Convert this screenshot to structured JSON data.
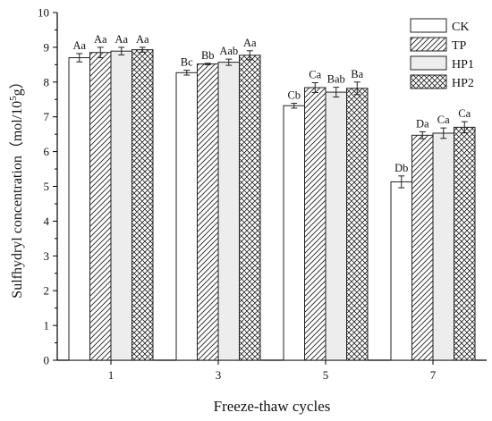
{
  "chart_data": {
    "type": "bar",
    "xlabel": "Freeze-thaw cycles",
    "ylabel": {
      "main": "Sulfhydryl concentration（mol/10",
      "sup": "5",
      "tail": "g）"
    },
    "ylim": [
      0,
      10
    ],
    "yticks": [
      "0",
      "1",
      "2",
      "3",
      "4",
      "5",
      "6",
      "7",
      "8",
      "9",
      "10"
    ],
    "categories": [
      "1",
      "3",
      "5",
      "7"
    ],
    "legend_position": "top-right",
    "grid": false,
    "series": [
      {
        "name": "CK",
        "pattern": "white",
        "values": [
          8.7,
          8.27,
          7.32,
          5.13
        ],
        "errors": [
          0.12,
          0.07,
          0.07,
          0.17
        ],
        "labels": [
          "Aa",
          "Bc",
          "Cb",
          "Db"
        ]
      },
      {
        "name": "TP",
        "pattern": "diagonal",
        "values": [
          8.85,
          8.52,
          7.84,
          6.47
        ],
        "errors": [
          0.15,
          0.02,
          0.14,
          0.1
        ],
        "labels": [
          "Aa",
          "Bb",
          "Ca",
          "Da"
        ]
      },
      {
        "name": "HP1",
        "pattern": "gray",
        "values": [
          8.89,
          8.57,
          7.71,
          6.53
        ],
        "errors": [
          0.11,
          0.09,
          0.14,
          0.15
        ],
        "labels": [
          "Aa",
          "Aab",
          "Bab",
          "Ca"
        ]
      },
      {
        "name": "HP2",
        "pattern": "crosshatch",
        "values": [
          8.93,
          8.77,
          7.82,
          6.7
        ],
        "errors": [
          0.07,
          0.13,
          0.18,
          0.16
        ],
        "labels": [
          "Aa",
          "Aa",
          "Ba",
          "Ca"
        ]
      }
    ]
  }
}
